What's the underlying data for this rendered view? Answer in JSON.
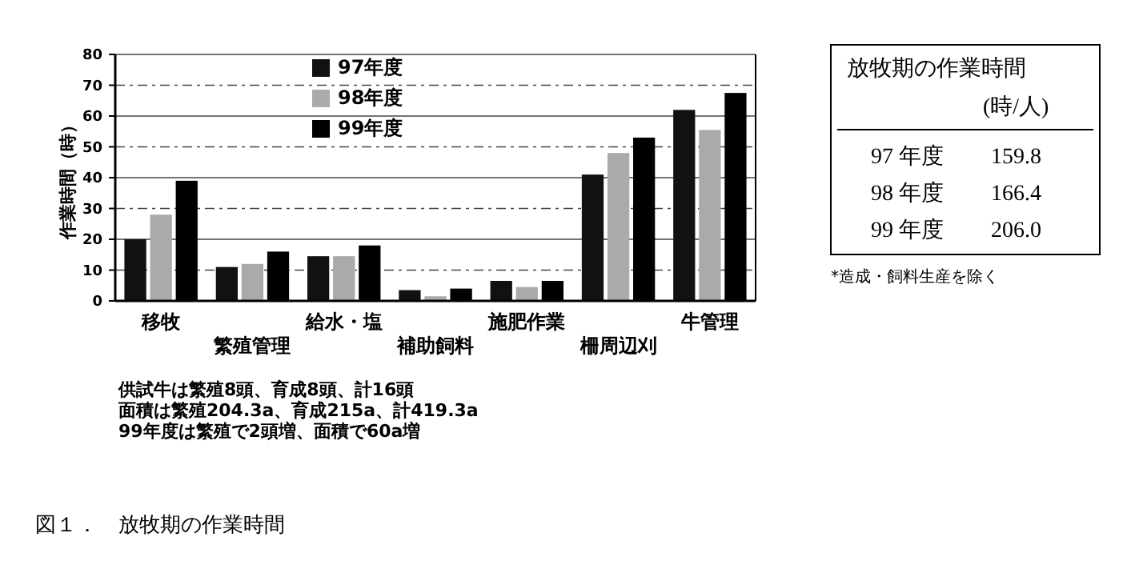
{
  "chart_data": [
    {
      "type": "bar",
      "ylabel": "作業時間（時）",
      "categories": [
        "移牧",
        "繁殖管理",
        "給水・塩",
        "補助飼料",
        "施肥作業",
        "柵周辺刈",
        "牛管理"
      ],
      "series": [
        {
          "name": "97年度",
          "color": "#111111",
          "values": [
            20,
            11,
            14.5,
            3.5,
            6.5,
            41,
            62
          ]
        },
        {
          "name": "98年度",
          "color": "#aaaaaa",
          "values": [
            28,
            12,
            14.5,
            1.5,
            4.5,
            48,
            55.5
          ]
        },
        {
          "name": "99年度",
          "color": "#000000",
          "values": [
            39,
            16,
            18,
            4,
            6.5,
            53,
            67.5
          ]
        }
      ],
      "ylim": [
        0,
        80
      ],
      "yticks": [
        0,
        10,
        20,
        30,
        40,
        50,
        60,
        70,
        80
      ],
      "grid": "y",
      "legend": "top",
      "annotations": [
        "供試牛は繁殖8頭、育成8頭、計16頭",
        "面積は繁殖204.3a、育成215a、計419.3a",
        "99年度は繁殖で2頭増、面積で60a増",
        "図１．　放牧期の作業時間"
      ]
    },
    {
      "type": "other",
      "title": "放牧期の作業時間",
      "subtitle": "(時/人)",
      "categories": [
        "97 年度",
        "98 年度",
        "99 年度"
      ],
      "value_labels": [
        "159.8",
        "166.4",
        "206.0"
      ],
      "annotations": [
        "*造成・飼料生産を除く"
      ]
    }
  ]
}
